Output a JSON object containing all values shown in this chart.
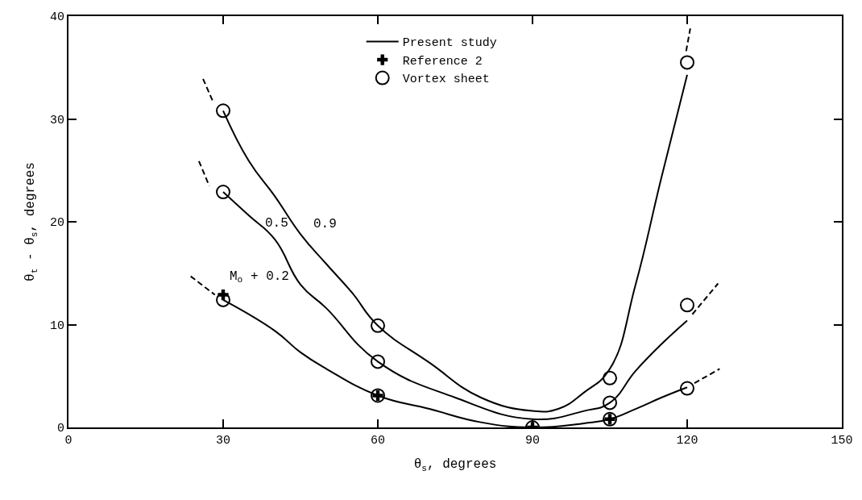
{
  "chart_data": {
    "type": "line",
    "xlabel": "θ$_{s}$, degrees",
    "ylabel": "θ$_{t}$ - θ$_{s}$, degrees",
    "xlim": [
      0,
      150
    ],
    "xticks": [
      0,
      30,
      60,
      90,
      120,
      150
    ],
    "ylim": [
      0,
      40
    ],
    "yticks": [
      0,
      10,
      20,
      30,
      40
    ],
    "legend": "top",
    "line_style": "solid",
    "marker": "none",
    "series": [
      {
        "name": "Present study",
        "color": "#000000",
        "x": [
          30,
          35,
          40,
          45,
          50,
          55,
          60,
          70,
          80,
          90,
          95,
          100,
          105,
          110,
          115,
          120
        ],
        "values": [
          30.8,
          25.9,
          22.5,
          18.8,
          15.9,
          13.1,
          9.9,
          6.3,
          2.9,
          1.6,
          1.8,
          3.4,
          5.7,
          13.9,
          24.3,
          34.3
        ]
      },
      {
        "color": "#000000",
        "x": [
          30,
          35,
          40,
          45,
          50,
          60,
          75,
          90,
          100,
          105,
          110,
          115,
          120
        ],
        "values": [
          22.9,
          20.6,
          18.3,
          13.9,
          11.6,
          6.4,
          2.9,
          0.8,
          1.6,
          2.4,
          5.5,
          8.1,
          10.4
        ]
      },
      {
        "color": "#000000",
        "x": [
          30,
          40,
          45,
          50,
          60,
          70,
          80,
          90,
          100,
          105,
          110,
          115,
          120
        ],
        "values": [
          12.4,
          9.4,
          7.3,
          5.7,
          3.1,
          1.8,
          0.5,
          0,
          0.4,
          0.8,
          1.8,
          2.9,
          3.9
        ]
      },
      {
        "color": "#000000",
        "line_style": "dashed",
        "x": [
          26.1,
          28.1
        ],
        "values": [
          33.9,
          31.6
        ]
      },
      {
        "color": "#000000",
        "line_style": "dashed",
        "x": [
          119.8,
          120.6
        ],
        "values": [
          36.6,
          38.8
        ]
      },
      {
        "color": "#000000",
        "line_style": "dashed",
        "x": [
          25.3,
          27.3
        ],
        "values": [
          25.9,
          23.5
        ]
      },
      {
        "color": "#000000",
        "line_style": "dashed",
        "x": [
          121,
          126
        ],
        "values": [
          11,
          14
        ]
      },
      {
        "color": "#000000",
        "line_style": "dashed",
        "x": [
          23.7,
          28.4
        ],
        "values": [
          14.7,
          12.9
        ]
      },
      {
        "color": "#000000",
        "line_style": "dashed",
        "x": [
          121.4,
          126.3
        ],
        "values": [
          4.3,
          5.7
        ]
      },
      {
        "name": "Reference 2",
        "type": "scatter",
        "marker": "cross",
        "color": "#000000",
        "x": [
          30,
          60,
          90,
          105
        ],
        "values": [
          12.9,
          3.1,
          0,
          0.8
        ]
      },
      {
        "name": "Vortex sheet",
        "type": "scatter",
        "marker": "circle",
        "color": "#000000",
        "x": [
          30,
          60,
          105,
          120,
          30,
          60,
          105,
          120,
          30,
          60,
          90,
          105,
          120
        ],
        "values": [
          30.8,
          9.9,
          4.8,
          35.5,
          22.9,
          6.4,
          2.4,
          11.9,
          12.4,
          3.1,
          0,
          0.8,
          3.8
        ]
      }
    ],
    "annotations": [
      "0.9",
      "0.5",
      "M$_{o}$ + 0.2"
    ]
  }
}
